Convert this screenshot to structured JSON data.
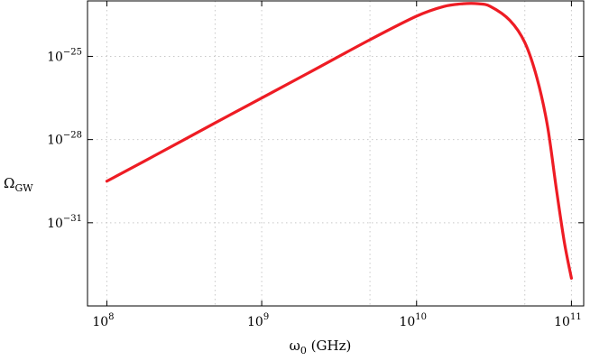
{
  "chart_data": {
    "type": "line",
    "title": "",
    "xlabel": {
      "main": "ω",
      "sub": "0",
      "unit": " (GHz)"
    },
    "ylabel": {
      "main": "Ω",
      "sub": "GW"
    },
    "xscale": "log",
    "yscale": "log",
    "xlim": [
      75000000,
      120000000000
    ],
    "ylim": [
      1e-34,
      1e-23
    ],
    "grid": true,
    "x_major_ticks": [
      {
        "value": 100000000,
        "base": "10",
        "exp": "8"
      },
      {
        "value": 1000000000,
        "base": "10",
        "exp": "9"
      },
      {
        "value": 10000000000,
        "base": "10",
        "exp": "10"
      },
      {
        "value": 100000000000,
        "base": "10",
        "exp": "11"
      }
    ],
    "x_minor_grid": [
      500000000,
      5000000000,
      50000000000
    ],
    "y_major_ticks": [
      {
        "value": 1e-25,
        "base": "10",
        "exp": "−25"
      },
      {
        "value": 1e-28,
        "base": "10",
        "exp": "−28"
      },
      {
        "value": 1e-31,
        "base": "10",
        "exp": "−31"
      }
    ],
    "series": [
      {
        "color": "#ee1c24",
        "x": [
          100000000,
          200000000,
          500000000,
          1000000000,
          2000000000,
          5000000000,
          10000000000,
          15000000000,
          20000000000,
          25000000000,
          30000000000,
          40000000000,
          50000000000,
          60000000000,
          70000000000,
          80000000000,
          90000000000,
          100000000000
        ],
        "y": [
          3.16e-30,
          2.5e-29,
          3.98e-28,
          3.16e-27,
          2.51e-26,
          3.98e-25,
          2.82e-24,
          6.3e-24,
          7.9e-24,
          7.9e-24,
          6.3e-24,
          2e-24,
          3.16e-25,
          1.6e-26,
          3.16e-28,
          1.6e-30,
          2e-32,
          1e-33
        ]
      }
    ]
  }
}
